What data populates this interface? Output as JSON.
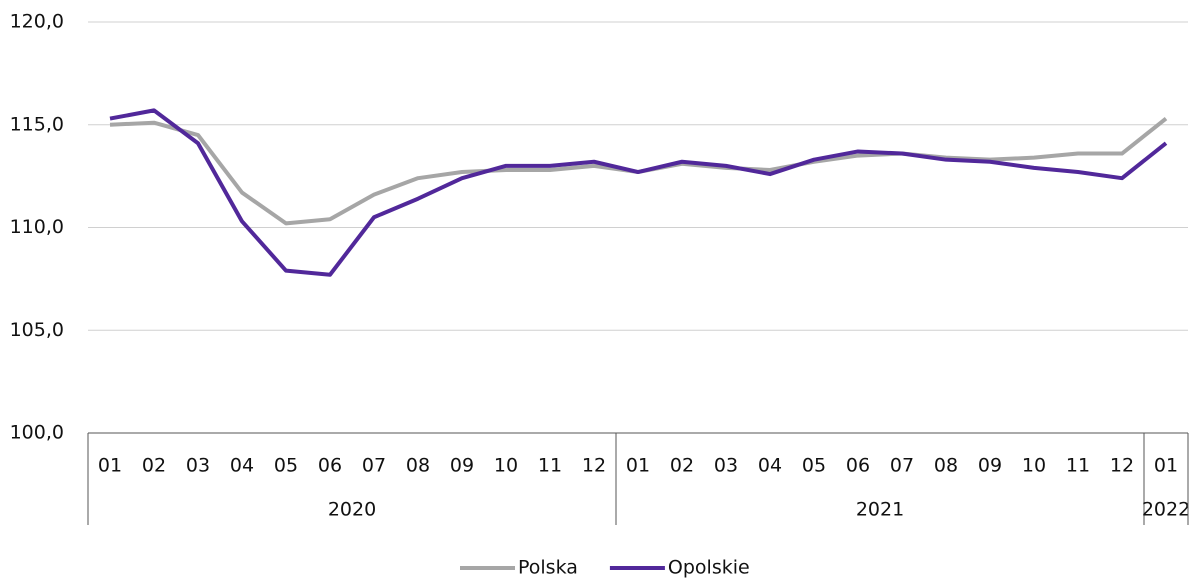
{
  "chart_data": {
    "type": "line",
    "categories": [
      "01",
      "02",
      "03",
      "04",
      "05",
      "06",
      "07",
      "08",
      "09",
      "10",
      "11",
      "12",
      "01",
      "02",
      "03",
      "04",
      "05",
      "06",
      "07",
      "08",
      "09",
      "10",
      "11",
      "12",
      "01"
    ],
    "x_groups": [
      {
        "label": "2020",
        "count": 12
      },
      {
        "label": "2021",
        "count": 12
      },
      {
        "label": "2022",
        "count": 1
      }
    ],
    "series": [
      {
        "name": "Polska",
        "color": "#a6a6a6",
        "values": [
          115.0,
          115.1,
          114.5,
          111.7,
          110.2,
          110.4,
          111.6,
          112.4,
          112.7,
          112.8,
          112.8,
          113.0,
          112.7,
          113.1,
          112.9,
          112.8,
          113.2,
          113.5,
          113.6,
          113.4,
          113.3,
          113.4,
          113.6,
          113.6,
          115.3
        ]
      },
      {
        "name": "Opolskie",
        "color": "#51289a",
        "values": [
          115.3,
          115.7,
          114.1,
          110.3,
          107.9,
          107.7,
          110.5,
          111.4,
          112.4,
          113.0,
          113.0,
          113.2,
          112.7,
          113.2,
          113.0,
          112.6,
          113.3,
          113.7,
          113.6,
          113.3,
          113.2,
          112.9,
          112.7,
          112.4,
          114.1
        ]
      }
    ],
    "ylim": [
      100,
      120
    ],
    "yticks": [
      {
        "value": 100,
        "label": "100,0"
      },
      {
        "value": 105,
        "label": "105,0"
      },
      {
        "value": 110,
        "label": "110,0"
      },
      {
        "value": 115,
        "label": "115,0"
      },
      {
        "value": 120,
        "label": "120,0"
      }
    ],
    "grid": true,
    "legend": "bottom"
  }
}
